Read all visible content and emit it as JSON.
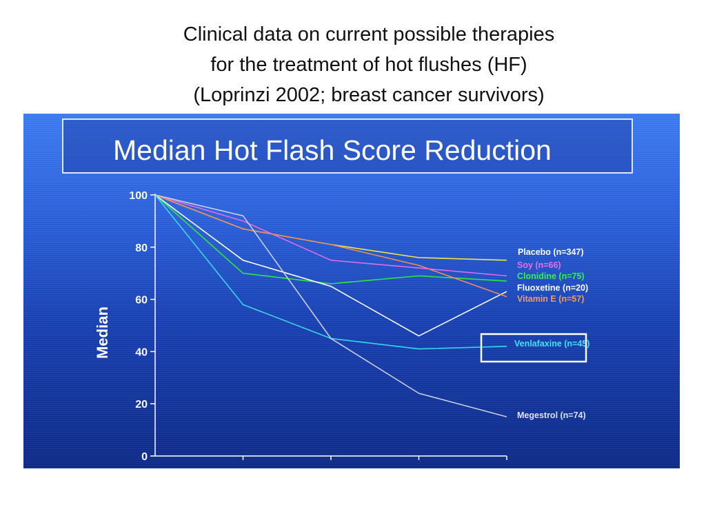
{
  "slide": {
    "title_lines": [
      "Clinical data on current possible therapies",
      "for the treatment of hot flushes (HF)",
      "(Loprinzi 2002; breast cancer survivors)"
    ]
  },
  "colors": {
    "panel_top": "#3c7af0",
    "panel_bottom": "#0d2a86",
    "axis": "#ffffff"
  },
  "chart_data": {
    "type": "line",
    "title": "Median Hot Flash Score Reduction",
    "xlabel": "",
    "ylabel": "Median",
    "ylim": [
      0,
      100
    ],
    "yticks": [
      0,
      20,
      40,
      60,
      80,
      100
    ],
    "x": [
      0,
      1,
      2,
      3,
      4
    ],
    "xlim": [
      0,
      4
    ],
    "grid": false,
    "legend": "right, inline labels",
    "series": [
      {
        "name": "Placebo (n=347)",
        "color": "#f2e84a",
        "label_color": "#ffffff",
        "values": [
          100,
          87,
          81,
          76,
          75
        ]
      },
      {
        "name": "Soy (n=66)",
        "color": "#e36be6",
        "label_color": "#ea6ee8",
        "values": [
          100,
          90,
          75,
          72,
          69
        ]
      },
      {
        "name": "Clonidine (n=75)",
        "color": "#2fe83a",
        "label_color": "#38f04a",
        "values": [
          100,
          70,
          66,
          69,
          67
        ]
      },
      {
        "name": "Fluoxetine (n=20)",
        "color": "#ffffff",
        "label_color": "#ffffff",
        "values": [
          100,
          75,
          65,
          46,
          63
        ]
      },
      {
        "name": "Vitamin E (n=57)",
        "color": "#f08a55",
        "label_color": "#f59a5e",
        "values": [
          100,
          87,
          81,
          73,
          61
        ]
      },
      {
        "name": "Venlafaxine (n=45)",
        "color": "#39d6e6",
        "label_color": "#44e0f0",
        "values": [
          100,
          58,
          45,
          41,
          42
        ]
      },
      {
        "name": "Megestrol (n=74)",
        "color": "#c9cfe0",
        "label_color": "#dfe3f0",
        "values": [
          100,
          92,
          45,
          24,
          15
        ]
      }
    ],
    "highlight": "Venlafaxine (n=45)"
  }
}
